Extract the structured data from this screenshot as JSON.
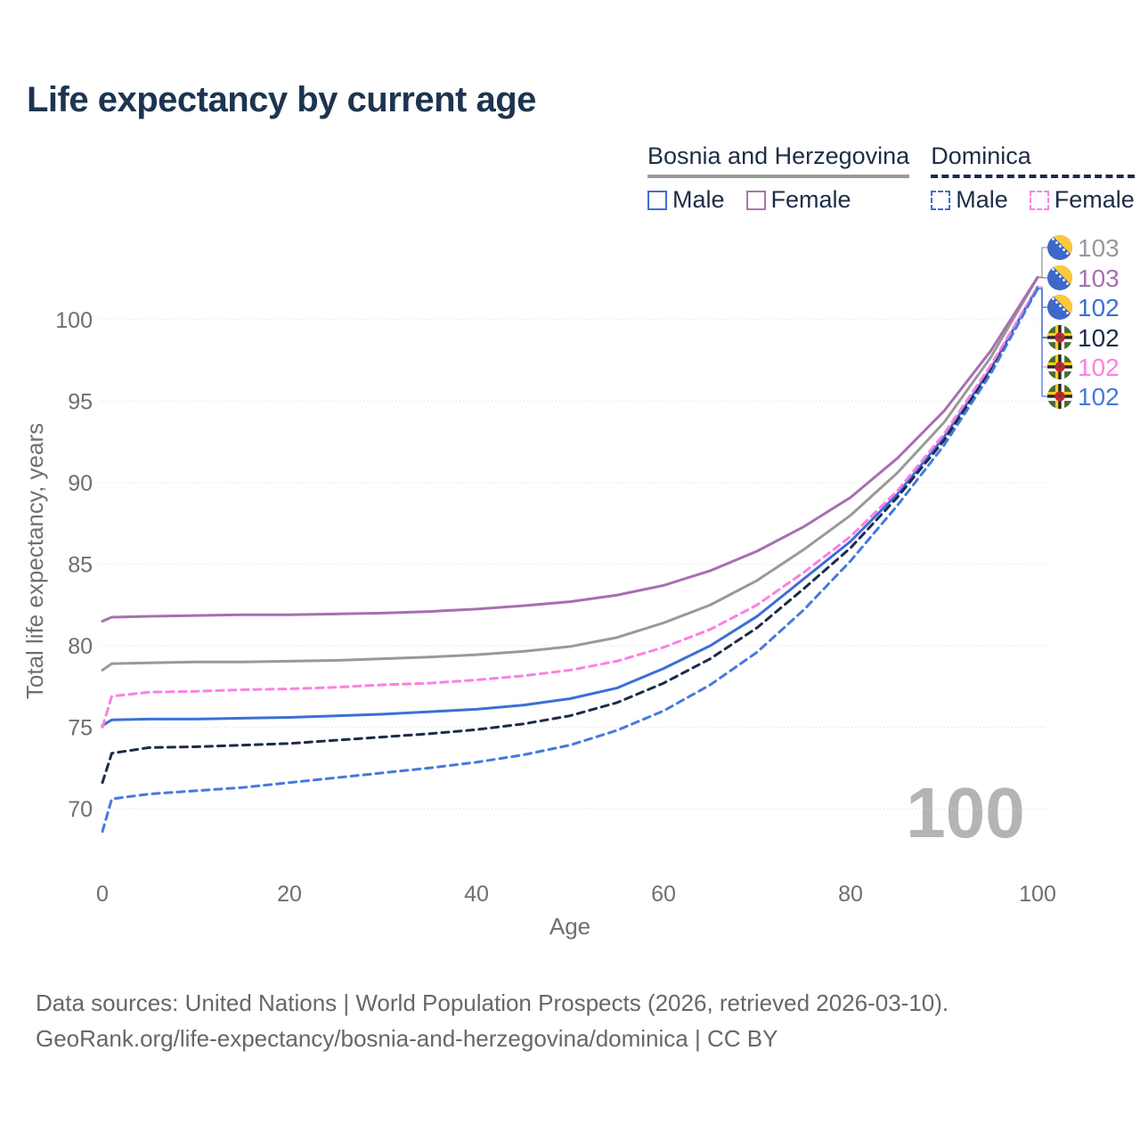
{
  "title": "Life expectancy by current age",
  "legend": {
    "groups": [
      {
        "label": "Bosnia and Herzegovina",
        "line_style": "solid",
        "underline_color": "#9a9a9a",
        "items": [
          {
            "label": "Male",
            "color": "#3e6fd0"
          },
          {
            "label": "Female",
            "color": "#b070b0"
          }
        ]
      },
      {
        "label": "Dominica",
        "line_style": "dashed",
        "underline_color": "#1c2b49",
        "items": [
          {
            "label": "Male",
            "color": "#3e6fd0"
          },
          {
            "label": "Female",
            "color": "#fb80e3"
          }
        ]
      }
    ]
  },
  "chart_data": {
    "type": "line",
    "title": "Life expectancy by current age",
    "xlabel": "Age",
    "ylabel": "Total life expectancy, years",
    "watermark": "100",
    "xlim": [
      0,
      100
    ],
    "ylim": [
      68,
      103
    ],
    "xticks": [
      0,
      20,
      40,
      60,
      80,
      100
    ],
    "yticks": [
      70,
      75,
      80,
      85,
      90,
      95,
      100
    ],
    "grid": "horizontal",
    "legend_position": "top-right",
    "x": [
      0,
      1,
      5,
      10,
      15,
      20,
      25,
      30,
      35,
      40,
      45,
      50,
      55,
      60,
      65,
      70,
      75,
      80,
      85,
      90,
      95,
      100
    ],
    "series": [
      {
        "name": "Bosnia and Herzegovina — Both sexes",
        "country": "Bosnia and Herzegovina",
        "sex": "both",
        "color": "#999999",
        "dashed": false,
        "end_label": "103",
        "flag": "bosnia-and-herzegovina",
        "values": [
          78.5,
          78.9,
          78.95,
          79.0,
          79.0,
          79.05,
          79.1,
          79.2,
          79.3,
          79.45,
          79.65,
          79.95,
          80.5,
          81.4,
          82.5,
          84.0,
          85.9,
          88.0,
          90.6,
          93.7,
          97.7,
          102.6
        ]
      },
      {
        "name": "Bosnia and Herzegovina — Female",
        "country": "Bosnia and Herzegovina",
        "sex": "female",
        "color": "#a76fb0",
        "dashed": false,
        "end_label": "103",
        "flag": "bosnia-and-herzegovina",
        "values": [
          81.5,
          81.75,
          81.8,
          81.85,
          81.9,
          81.9,
          81.95,
          82.0,
          82.1,
          82.25,
          82.45,
          82.7,
          83.1,
          83.7,
          84.6,
          85.8,
          87.3,
          89.1,
          91.5,
          94.4,
          98.1,
          102.6
        ]
      },
      {
        "name": "Bosnia and Herzegovina — Male",
        "country": "Bosnia and Herzegovina",
        "sex": "male",
        "color": "#3b6fd6",
        "dashed": false,
        "end_label": "102",
        "flag": "bosnia-and-herzegovina",
        "values": [
          75.1,
          75.45,
          75.5,
          75.5,
          75.55,
          75.6,
          75.7,
          75.8,
          75.95,
          76.1,
          76.35,
          76.75,
          77.4,
          78.6,
          80.0,
          81.8,
          84.1,
          86.4,
          89.3,
          92.8,
          97.0,
          102.0
        ]
      },
      {
        "name": "Dominica — Both sexes",
        "country": "Dominica",
        "sex": "both",
        "color": "#1c2b49",
        "dashed": true,
        "end_label": "102",
        "flag": "dominica",
        "values": [
          71.6,
          73.4,
          73.75,
          73.8,
          73.9,
          74.0,
          74.2,
          74.4,
          74.6,
          74.85,
          75.2,
          75.7,
          76.5,
          77.7,
          79.2,
          81.1,
          83.5,
          86.0,
          89.1,
          92.6,
          96.9,
          101.9
        ]
      },
      {
        "name": "Dominica — Female",
        "country": "Dominica",
        "sex": "female",
        "color": "#fb80e3",
        "dashed": true,
        "end_label": "102",
        "flag": "dominica",
        "values": [
          75.0,
          76.9,
          77.15,
          77.2,
          77.3,
          77.35,
          77.45,
          77.6,
          77.7,
          77.9,
          78.15,
          78.5,
          79.05,
          79.9,
          81.0,
          82.5,
          84.5,
          86.7,
          89.5,
          93.0,
          97.2,
          102.0
        ]
      },
      {
        "name": "Dominica — Male",
        "country": "Dominica",
        "sex": "male",
        "color": "#4579df",
        "dashed": true,
        "end_label": "102",
        "flag": "dominica",
        "values": [
          68.6,
          70.6,
          70.9,
          71.1,
          71.3,
          71.6,
          71.9,
          72.2,
          72.5,
          72.85,
          73.3,
          73.9,
          74.8,
          76.0,
          77.6,
          79.6,
          82.2,
          85.2,
          88.6,
          92.3,
          96.7,
          101.9
        ]
      }
    ],
    "end_label_order": [
      0,
      1,
      2,
      3,
      4,
      5
    ]
  },
  "footer": {
    "line1": "Data sources: United Nations | World Population Prospects (2026, retrieved 2026-03-10).",
    "line2": "GeoRank.org/life-expectancy/bosnia-and-herzegovina/dominica | CC BY"
  },
  "colors": {
    "title": "#1d3450",
    "axis_text": "#6f6f6f",
    "gridline": "#dedede",
    "watermark": "#b4b4b4",
    "footer_text": "#676767"
  }
}
